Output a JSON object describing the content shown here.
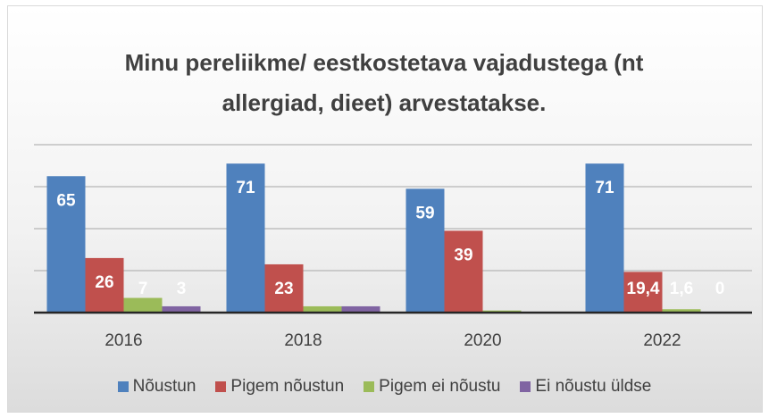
{
  "chart_data": {
    "type": "bar",
    "title": "Minu pereliikme/ eestkostetava vajadustega (nt allergiad, dieet) arvestatakse.",
    "categories": [
      "2016",
      "2018",
      "2020",
      "2022"
    ],
    "series": [
      {
        "name": "Nõustun",
        "color": "#4f81bd",
        "values": [
          65,
          71,
          59,
          71
        ],
        "value_labels": [
          "65",
          "71",
          "59",
          "71"
        ]
      },
      {
        "name": "Pigem nõustun",
        "color": "#c0504d",
        "values": [
          26,
          23,
          39,
          19.4
        ],
        "value_labels": [
          "26",
          "23",
          "39",
          "19,4"
        ]
      },
      {
        "name": "Pigem ei nõustu",
        "color": "#9bbb59",
        "values": [
          7,
          3,
          1,
          1.6
        ],
        "value_labels": [
          "7",
          null,
          null,
          "1,6"
        ]
      },
      {
        "name": "Ei nõustu üldse",
        "color": "#8064a2",
        "values": [
          3,
          3,
          0,
          0
        ],
        "value_labels": [
          "3",
          null,
          null,
          "0"
        ]
      }
    ],
    "ylim": [
      0,
      80
    ],
    "yticks": [
      0,
      20,
      40,
      60,
      80
    ],
    "ytick_labels_shown": false,
    "grid": true
  }
}
